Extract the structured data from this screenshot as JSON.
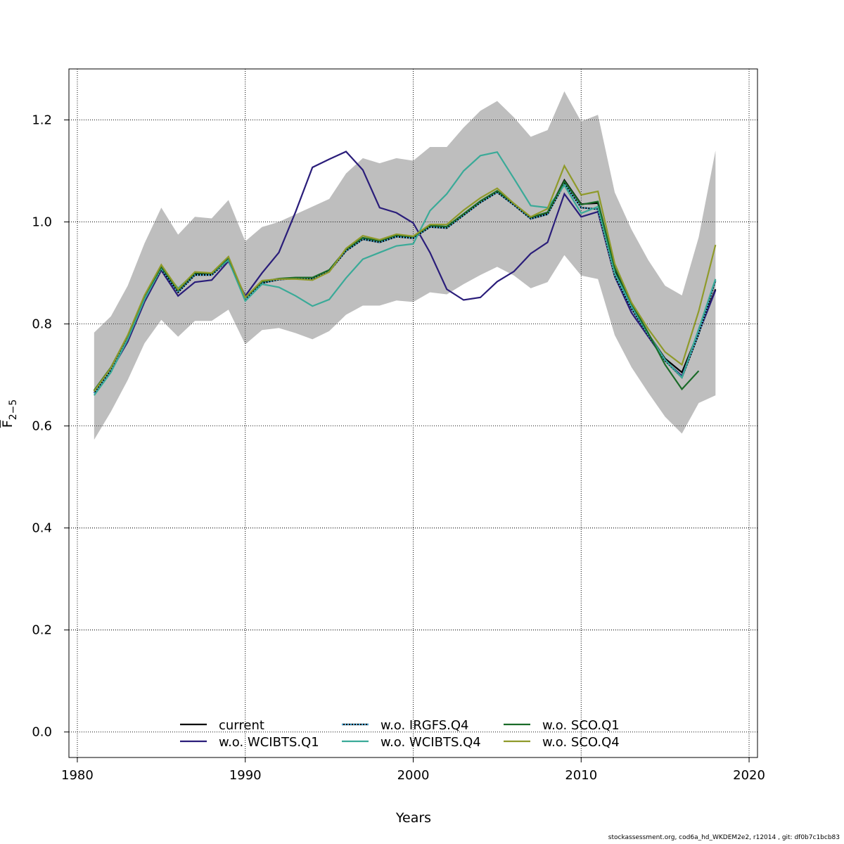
{
  "chart_data": {
    "type": "line",
    "xlabel": "Years",
    "ylabel": "F",
    "ylabel_sub": "2−5",
    "xlim": [
      1980,
      2020
    ],
    "ylim": [
      -0.05,
      1.3
    ],
    "xticks": [
      1980,
      1990,
      2000,
      2010,
      2020
    ],
    "yticks": [
      "0.0",
      "0.2",
      "0.4",
      "0.6",
      "0.8",
      "1.0",
      "1.2"
    ],
    "grid": true,
    "legend_position": "bottom-center",
    "confidence_band": {
      "x": [
        1981,
        1982,
        1983,
        1984,
        1985,
        1986,
        1987,
        1988,
        1989,
        1990,
        1991,
        1992,
        1993,
        1994,
        1995,
        1996,
        1997,
        1998,
        1999,
        2000,
        2001,
        2002,
        2003,
        2004,
        2005,
        2006,
        2007,
        2008,
        2009,
        2010,
        2011,
        2012,
        2013,
        2014,
        2015,
        2016,
        2017,
        2018
      ],
      "upper": [
        0.783,
        0.815,
        0.875,
        0.958,
        1.028,
        0.975,
        1.01,
        1.007,
        1.043,
        0.962,
        0.99,
        1.0,
        1.015,
        1.03,
        1.045,
        1.095,
        1.125,
        1.115,
        1.125,
        1.12,
        1.147,
        1.147,
        1.185,
        1.218,
        1.237,
        1.205,
        1.167,
        1.18,
        1.256,
        1.197,
        1.21,
        1.058,
        0.985,
        0.925,
        0.875,
        0.856,
        0.97,
        1.14
      ],
      "lower": [
        0.573,
        0.628,
        0.69,
        0.762,
        0.808,
        0.775,
        0.806,
        0.806,
        0.828,
        0.76,
        0.788,
        0.792,
        0.782,
        0.77,
        0.786,
        0.818,
        0.836,
        0.836,
        0.846,
        0.843,
        0.862,
        0.858,
        0.878,
        0.896,
        0.912,
        0.895,
        0.87,
        0.882,
        0.935,
        0.895,
        0.888,
        0.778,
        0.715,
        0.665,
        0.618,
        0.585,
        0.645,
        0.66
      ]
    },
    "series": [
      {
        "name": "current",
        "color": "#000000",
        "dash": "solid",
        "x": [
          1981,
          1982,
          1983,
          1984,
          1985,
          1986,
          1987,
          1988,
          1989,
          1990,
          1991,
          1992,
          1993,
          1994,
          1995,
          1996,
          1997,
          1998,
          1999,
          2000,
          2001,
          2002,
          2003,
          2004,
          2005,
          2006,
          2007,
          2008,
          2009,
          2010,
          2011,
          2012,
          2013,
          2014,
          2015,
          2016,
          2017,
          2018
        ],
        "values": [
          0.668,
          0.713,
          0.775,
          0.853,
          0.91,
          0.865,
          0.898,
          0.898,
          0.928,
          0.85,
          0.882,
          0.888,
          0.89,
          0.89,
          0.905,
          0.945,
          0.968,
          0.962,
          0.973,
          0.97,
          0.992,
          0.99,
          1.015,
          1.04,
          1.06,
          1.035,
          1.008,
          1.018,
          1.082,
          1.035,
          1.037,
          0.905,
          0.833,
          0.78,
          0.732,
          0.705,
          0.785,
          0.868
        ]
      },
      {
        "name": "w.o. WCIBTS.Q1",
        "color": "#2a1d7a",
        "dash": "solid",
        "x": [
          1981,
          1982,
          1983,
          1984,
          1985,
          1986,
          1987,
          1988,
          1989,
          1990,
          1991,
          1992,
          1993,
          1994,
          1995,
          1996,
          1997,
          1998,
          1999,
          2000,
          2001,
          2002,
          2003,
          2004,
          2005,
          2006,
          2007,
          2008,
          2009,
          2010,
          2011,
          2012,
          2013,
          2014,
          2015,
          2016,
          2017,
          2018
        ],
        "values": [
          0.665,
          0.708,
          0.765,
          0.843,
          0.905,
          0.855,
          0.882,
          0.886,
          0.923,
          0.855,
          0.9,
          0.94,
          1.02,
          1.107,
          1.123,
          1.138,
          1.102,
          1.028,
          1.018,
          0.998,
          0.94,
          0.868,
          0.847,
          0.852,
          0.883,
          0.903,
          0.938,
          0.96,
          1.055,
          1.01,
          1.02,
          0.893,
          0.822,
          0.775,
          0.728,
          0.698,
          0.782,
          0.866
        ]
      },
      {
        "name": "w.o. IRGFS.Q4",
        "color": "#4aa8d8",
        "dash": "dotted",
        "x": [
          1981,
          1982,
          1983,
          1984,
          1985,
          1986,
          1987,
          1988,
          1989,
          1990,
          1991,
          1992,
          1993,
          1994,
          1995,
          1996,
          1997,
          1998,
          1999,
          2000,
          2001,
          2002,
          2003,
          2004,
          2005,
          2006,
          2007,
          2008,
          2009,
          2010,
          2011,
          2012,
          2013,
          2014,
          2015,
          2016,
          2017,
          2018
        ],
        "values": [
          0.664,
          0.71,
          0.772,
          0.85,
          0.908,
          0.862,
          0.896,
          0.896,
          0.926,
          0.848,
          0.88,
          0.887,
          0.889,
          0.888,
          0.903,
          0.943,
          0.966,
          0.96,
          0.971,
          0.968,
          0.99,
          0.988,
          1.013,
          1.038,
          1.058,
          1.033,
          1.006,
          1.015,
          1.075,
          1.028,
          1.025,
          0.895,
          0.83,
          0.778,
          0.728,
          0.695,
          0.78,
          0.885
        ]
      },
      {
        "name": "w.o. WCIBTS.Q4",
        "color": "#3aaa98",
        "dash": "solid",
        "x": [
          1981,
          1982,
          1983,
          1984,
          1985,
          1986,
          1987,
          1988,
          1989,
          1990,
          1991,
          1992,
          1993,
          1994,
          1995,
          1996,
          1997,
          1998,
          1999,
          2000,
          2001,
          2002,
          2003,
          2004,
          2005,
          2006,
          2007,
          2008,
          2009,
          2010,
          2011,
          2012,
          2013,
          2014,
          2015,
          2016,
          2017,
          2018
        ],
        "values": [
          0.66,
          0.705,
          0.77,
          0.848,
          0.91,
          0.87,
          0.9,
          0.9,
          0.925,
          0.845,
          0.878,
          0.872,
          0.855,
          0.835,
          0.848,
          0.89,
          0.927,
          0.94,
          0.953,
          0.957,
          1.022,
          1.055,
          1.1,
          1.13,
          1.137,
          1.085,
          1.032,
          1.028,
          1.072,
          1.017,
          1.03,
          0.9,
          0.835,
          0.78,
          0.73,
          0.695,
          0.79,
          0.888
        ]
      },
      {
        "name": "w.o. SCO.Q1",
        "color": "#1a6b28",
        "dash": "solid",
        "x": [
          1981,
          1982,
          1983,
          1984,
          1985,
          1986,
          1987,
          1988,
          1989,
          1990,
          1991,
          1992,
          1993,
          1994,
          1995,
          1996,
          1997,
          1998,
          1999,
          2000,
          2001,
          2002,
          2003,
          2004,
          2005,
          2006,
          2007,
          2008,
          2009,
          2010,
          2011,
          2012,
          2013,
          2014,
          2015,
          2016,
          2017
        ],
        "values": [
          0.67,
          0.715,
          0.777,
          0.855,
          0.912,
          0.866,
          0.9,
          0.899,
          0.93,
          0.852,
          0.883,
          0.889,
          0.891,
          0.891,
          0.906,
          0.946,
          0.969,
          0.963,
          0.974,
          0.971,
          0.993,
          0.991,
          1.016,
          1.041,
          1.061,
          1.036,
          1.009,
          1.019,
          1.08,
          1.034,
          1.04,
          0.91,
          0.84,
          0.782,
          0.72,
          0.672,
          0.708
        ]
      },
      {
        "name": "w.o. SCO.Q4",
        "color": "#8f9a2a",
        "dash": "solid",
        "x": [
          1981,
          1982,
          1983,
          1984,
          1985,
          1986,
          1987,
          1988,
          1989,
          1990,
          1991,
          1992,
          1993,
          1994,
          1995,
          1996,
          1997,
          1998,
          1999,
          2000,
          2001,
          2002,
          2003,
          2004,
          2005,
          2006,
          2007,
          2008,
          2009,
          2010,
          2011,
          2012,
          2013,
          2014,
          2015,
          2016,
          2017,
          2018
        ],
        "values": [
          0.668,
          0.714,
          0.778,
          0.856,
          0.916,
          0.868,
          0.902,
          0.9,
          0.932,
          0.852,
          0.885,
          0.888,
          0.888,
          0.886,
          0.902,
          0.948,
          0.973,
          0.965,
          0.976,
          0.972,
          0.995,
          0.995,
          1.023,
          1.047,
          1.066,
          1.036,
          1.01,
          1.026,
          1.11,
          1.053,
          1.06,
          0.918,
          0.842,
          0.79,
          0.745,
          0.72,
          0.825,
          0.955
        ]
      }
    ]
  },
  "footer": "stockassessment.org, cod6a_hd_WKDEM2e2, r12014 , git: df0b7c1bcb83"
}
